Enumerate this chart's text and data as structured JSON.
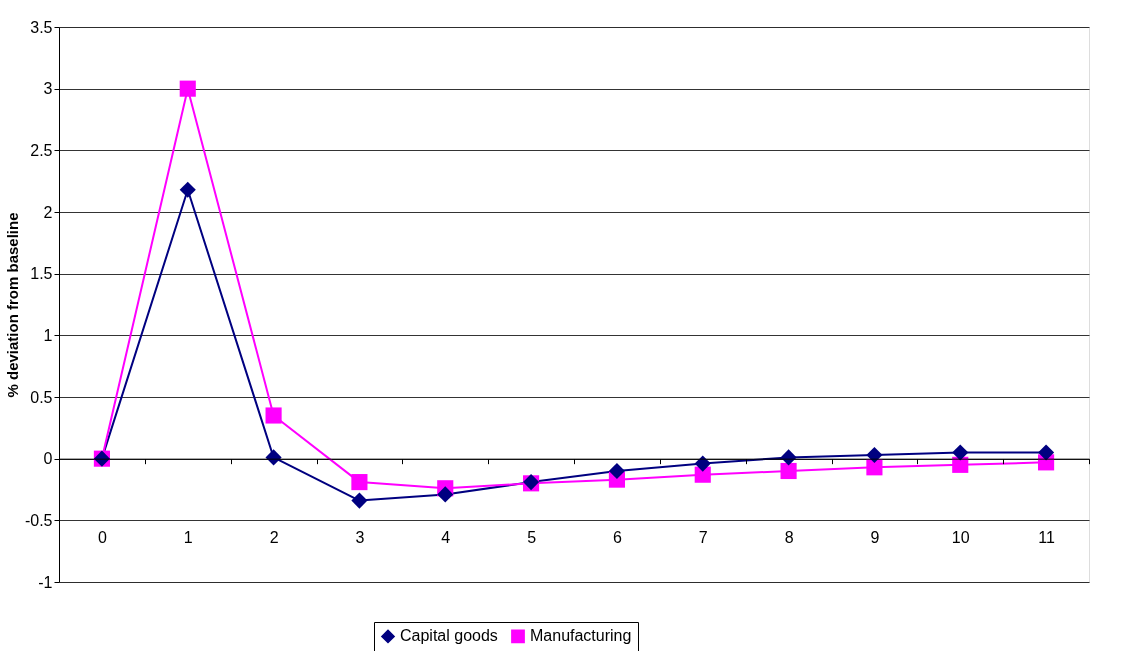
{
  "chart_data": {
    "type": "line",
    "ylabel": "% deviation from baseline",
    "categories": [
      "0",
      "1",
      "2",
      "3",
      "4",
      "5",
      "6",
      "7",
      "8",
      "9",
      "10",
      "11"
    ],
    "series": [
      {
        "name": "Capital goods",
        "color": "#000080",
        "marker": "diamond",
        "values": [
          0,
          2.18,
          0.01,
          -0.34,
          -0.29,
          -0.19,
          -0.1,
          -0.04,
          0.01,
          0.03,
          0.05,
          0.05
        ]
      },
      {
        "name": "Manufacturing",
        "color": "#ff00ff",
        "marker": "square",
        "values": [
          0,
          3.0,
          0.35,
          -0.19,
          -0.24,
          -0.2,
          -0.17,
          -0.13,
          -0.1,
          -0.07,
          -0.05,
          -0.03
        ]
      }
    ],
    "ylim": [
      -1,
      3.5
    ],
    "yticks": [
      -1,
      -0.5,
      0,
      0.5,
      1,
      1.5,
      2,
      2.5,
      3,
      3.5
    ],
    "grid": "y",
    "legend": "bottom",
    "line_style": "solid"
  }
}
